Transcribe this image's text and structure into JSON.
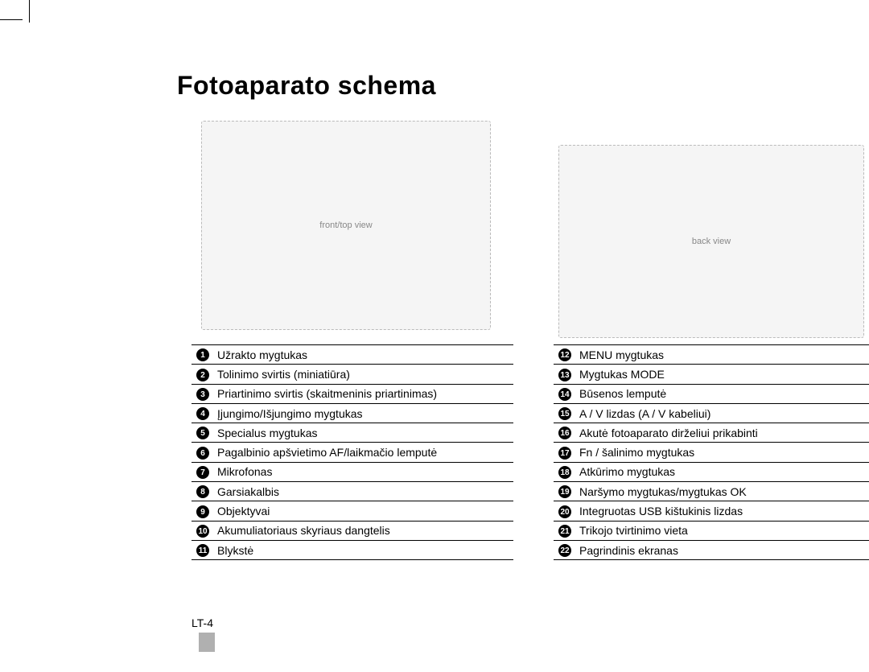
{
  "title": "Fotoaparato schema",
  "page_number": "LT-4",
  "diagram_front_alt": "front/top view",
  "diagram_back_alt": "back view",
  "front": {
    "items": [
      {
        "n": "1",
        "label": "Užrakto mygtukas"
      },
      {
        "n": "2",
        "label": "Tolinimo svirtis (miniatiūra)"
      },
      {
        "n": "3",
        "label": "Priartinimo svirtis (skaitmeninis priartinimas)"
      },
      {
        "n": "4",
        "label": "Įjungimo/Išjungimo mygtukas"
      },
      {
        "n": "5",
        "label": "Specialus mygtukas"
      },
      {
        "n": "6",
        "label": "Pagalbinio apšvietimo AF/laikmačio lemputė"
      },
      {
        "n": "7",
        "label": "Mikrofonas"
      },
      {
        "n": "8",
        "label": "Garsiakalbis"
      },
      {
        "n": "9",
        "label": "Objektyvai"
      },
      {
        "n": "10",
        "label": "Akumuliatoriaus skyriaus dangtelis"
      },
      {
        "n": "11",
        "label": "Blykstė"
      }
    ]
  },
  "back": {
    "items": [
      {
        "n": "12",
        "label": "MENU mygtukas"
      },
      {
        "n": "13",
        "label": "Mygtukas MODE"
      },
      {
        "n": "14",
        "label": "Būsenos lemputė"
      },
      {
        "n": "15",
        "label": "A / V lizdas (A / V kabeliui)"
      },
      {
        "n": "16",
        "label": "Akutė fotoaparato dirželiui prikabinti"
      },
      {
        "n": "17",
        "label": "Fn / šalinimo mygtukas"
      },
      {
        "n": "18",
        "label": "Atkūrimo mygtukas"
      },
      {
        "n": "19",
        "label": "Naršymo mygtukas/mygtukas OK"
      },
      {
        "n": "20",
        "label": "Integruotas USB kištukinis lizdas"
      },
      {
        "n": "21",
        "label": "Trikojo tvirtinimo vieta"
      },
      {
        "n": "22",
        "label": "Pagrindinis ekranas"
      }
    ]
  },
  "style": {
    "font_family": "Arial",
    "title_fontsize": 32,
    "body_fontsize": 14,
    "text_color": "#000000",
    "background_color": "#ffffff",
    "border_color": "#000000",
    "page_bar_color": "#b0b0b0",
    "circled_number_bg": "#000000",
    "circled_number_fg": "#ffffff"
  }
}
